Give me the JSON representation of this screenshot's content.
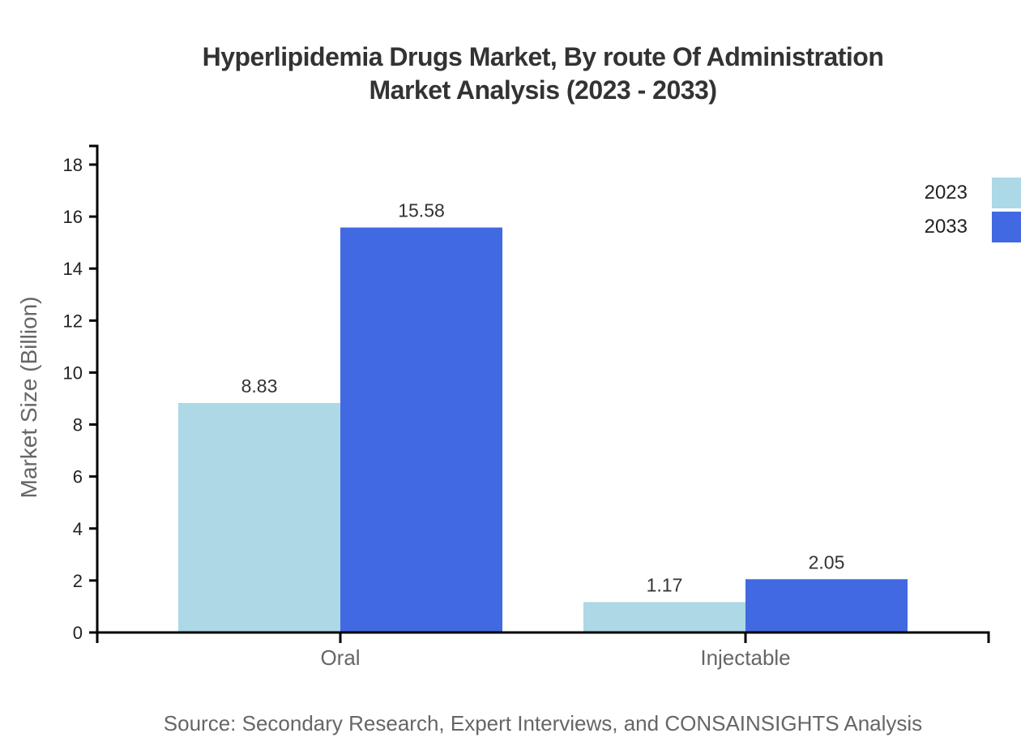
{
  "title": {
    "line1": "Hyperlipidemia Drugs Market, By route Of Administration",
    "line2": "Market Analysis (2023 - 2033)"
  },
  "source": "Source: Secondary Research, Expert Interviews, and CONSAINSIGHTS Analysis",
  "chart_data": {
    "type": "bar",
    "title": "Hyperlipidemia Drugs Market, By route Of Administration Market Analysis (2023 - 2033)",
    "categories": [
      "Oral",
      "Injectable"
    ],
    "series": [
      {
        "name": "2023",
        "color": "#ADD8E6",
        "values": [
          8.83,
          1.17
        ]
      },
      {
        "name": "2033",
        "color": "#4169E1",
        "values": [
          15.58,
          2.05
        ]
      }
    ],
    "xlabel": "",
    "ylabel": "Market Size (Billion)",
    "ylim": [
      0,
      18
    ],
    "y_ticks": [
      0,
      2,
      4,
      6,
      8,
      10,
      12,
      14,
      16,
      18
    ],
    "grid": false,
    "legend_position": "top-right",
    "value_labels": true
  },
  "colors": {
    "axis": "#000000",
    "title_text": "#333333",
    "value_label_text": "#333333",
    "tick_label_text": "#222222",
    "muted_text": "#666666",
    "series_2023": "#ADD8E6",
    "series_2033": "#4169E1",
    "background": "#ffffff"
  }
}
